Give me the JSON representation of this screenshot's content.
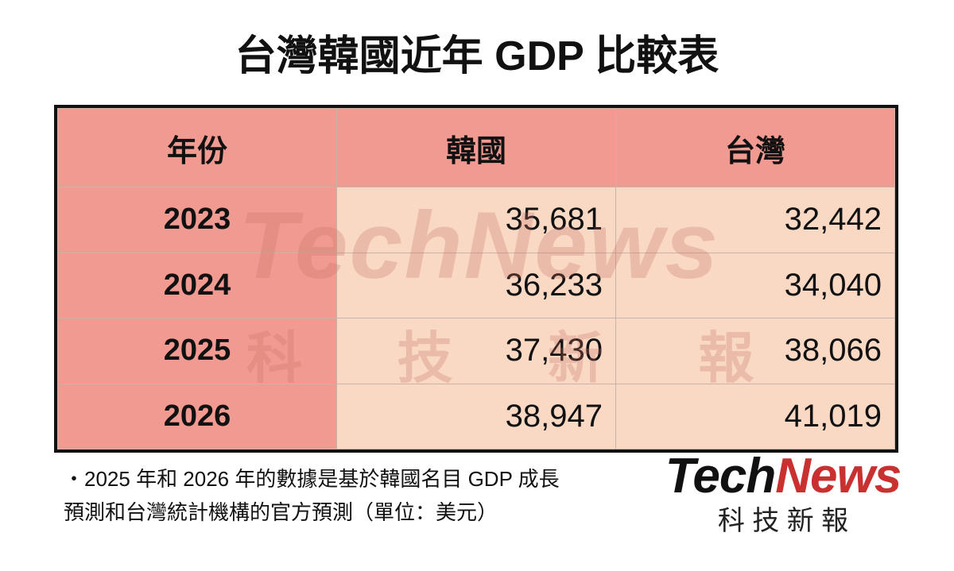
{
  "title": "台灣韓國近年 GDP 比較表",
  "table": {
    "header": [
      "年份",
      "韓國",
      "台灣"
    ],
    "rows": [
      [
        "2023",
        "35,681",
        "32,442"
      ],
      [
        "2024",
        "36,233",
        "34,040"
      ],
      [
        "2025",
        "37,430",
        "38,066"
      ],
      [
        "2026",
        "38,947",
        "41,019"
      ]
    ]
  },
  "note": [
    "・2025 年和 2026 年的數據是基於韓國名目 GDP 成長",
    "預測和台灣統計機構的官方預測（單位：美元）"
  ],
  "logo": {
    "brand_1": "Tech",
    "brand_2": "News",
    "subtitle": "科 技 新 報"
  }
}
